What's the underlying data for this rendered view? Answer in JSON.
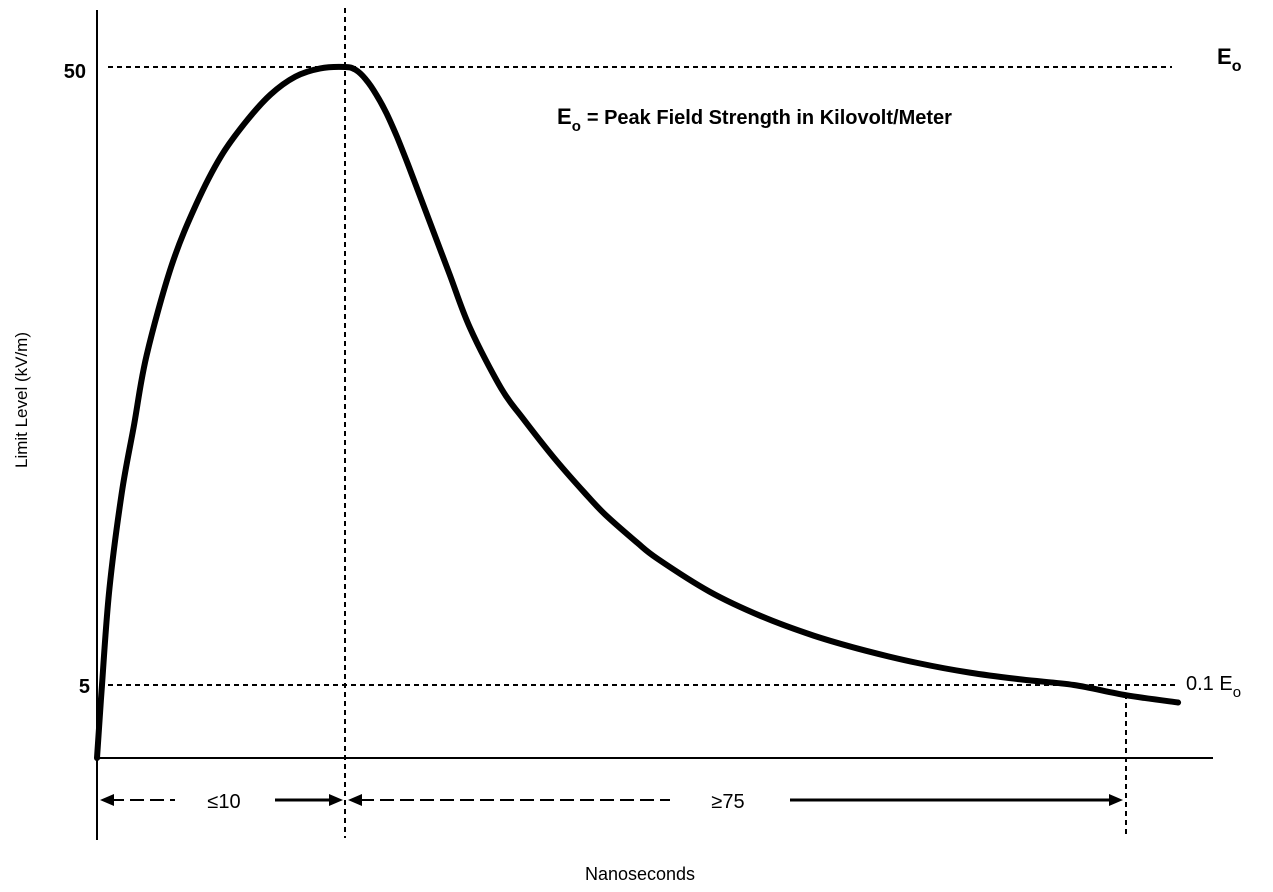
{
  "chart_data": {
    "type": "line",
    "title": "",
    "xlabel": "Nanoseconds",
    "ylabel": "Limit Level (kV/m)",
    "y_ticks": [
      "50",
      "5"
    ],
    "reference_lines": [
      {
        "label": "E",
        "subscript": "o",
        "y": 50
      },
      {
        "label": "0.1 E",
        "subscript": "o",
        "y": 5
      }
    ],
    "annotation": {
      "symbol": "E",
      "subscript": "o",
      "text": "= Peak Field Strength in Kilovolt/Meter"
    },
    "intervals": [
      {
        "label": "≤10",
        "from": 0,
        "to": 10
      },
      {
        "label": "≥75",
        "from": 10,
        "to": 85
      }
    ],
    "series": [
      {
        "x": [
          0,
          0.2,
          0.5,
          1,
          1.5,
          2,
          3,
          4,
          5,
          6,
          7,
          8,
          9,
          10,
          11,
          12,
          13,
          14,
          15,
          16,
          17,
          18,
          20,
          22,
          25,
          27,
          30,
          33,
          35,
          38,
          40,
          45,
          50,
          55,
          60,
          65,
          70,
          75,
          80,
          85,
          90
        ],
        "y": [
          0,
          5,
          12,
          19,
          24,
          29,
          35.5,
          40,
          43.5,
          46,
          48,
          49.3,
          49.9,
          50,
          49.8,
          49.1,
          48,
          46.6,
          44.9,
          43,
          41,
          39,
          35,
          31,
          26.6,
          24.5,
          21.6,
          19,
          17.4,
          15.4,
          14.2,
          11.8,
          10,
          8.6,
          7.5,
          6.6,
          5.9,
          5.4,
          5,
          4.3,
          3.8
        ]
      }
    ]
  }
}
